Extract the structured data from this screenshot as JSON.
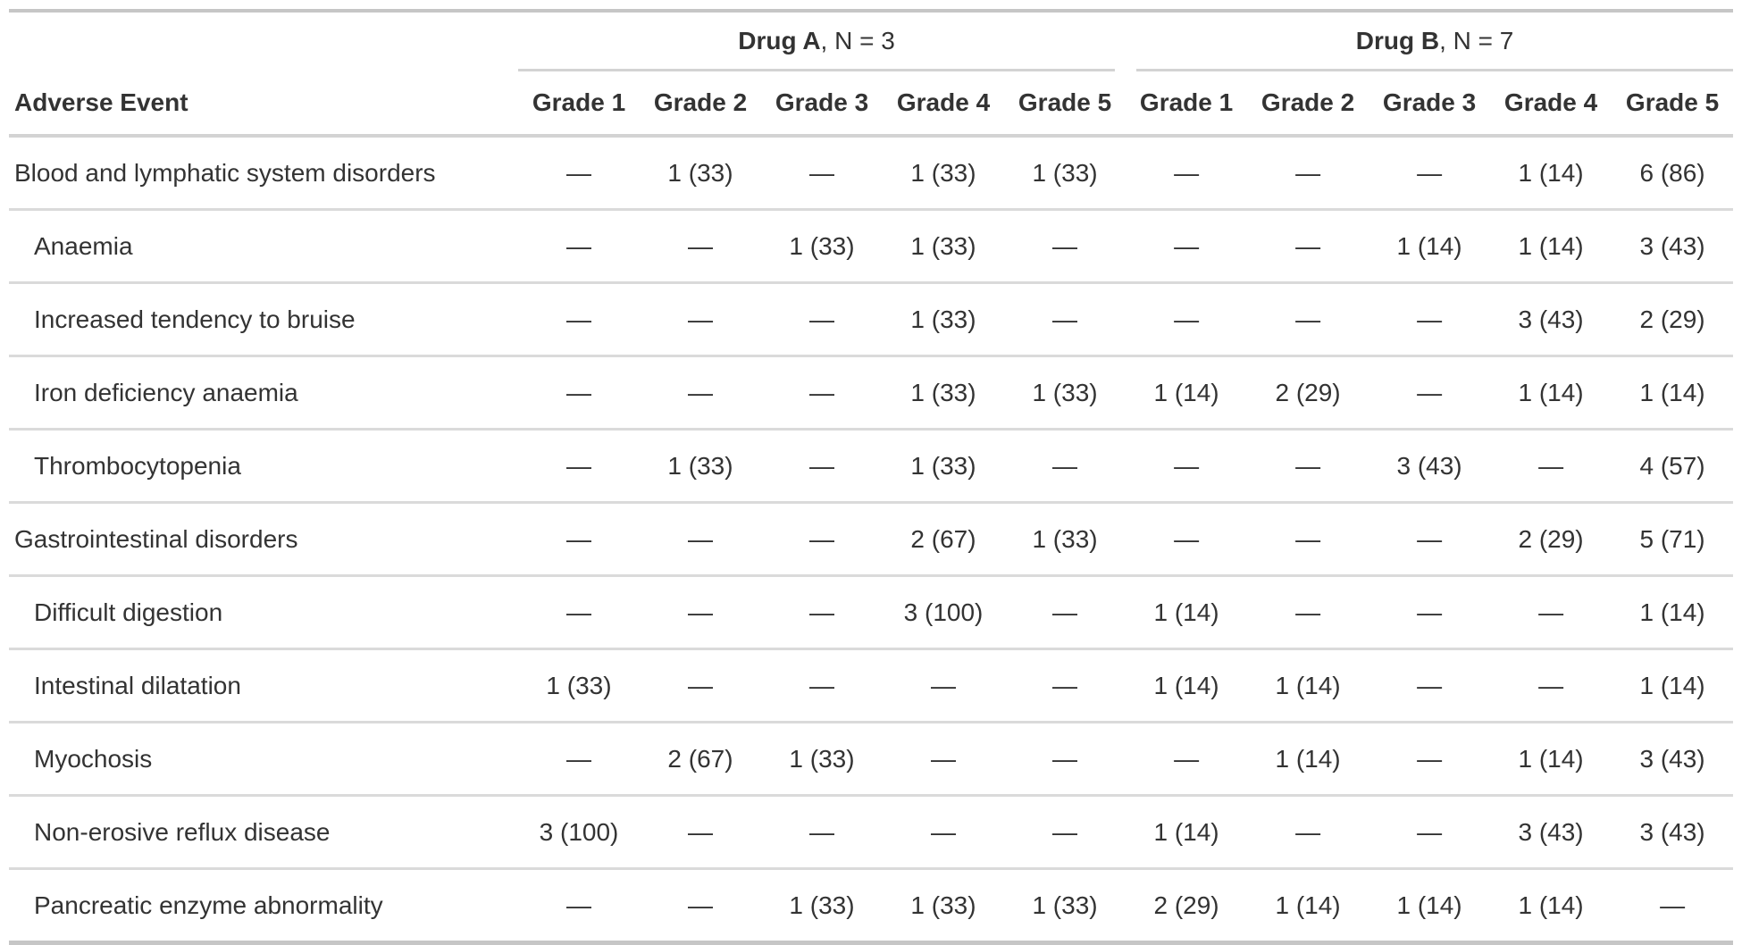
{
  "colors": {
    "text": "#333333",
    "rule_light": "#d3d3d3",
    "rule_dark": "#c6c6c6",
    "background": "#ffffff"
  },
  "chart_data": {
    "type": "table",
    "row_header": "Adverse Event",
    "empty_symbol": "—",
    "groups": [
      {
        "name": "Drug A",
        "suffix": ", N = 3",
        "grades": [
          "Grade 1",
          "Grade 2",
          "Grade 3",
          "Grade 4",
          "Grade 5"
        ]
      },
      {
        "name": "Drug B",
        "suffix": ", N = 7",
        "grades": [
          "Grade 1",
          "Grade 2",
          "Grade 3",
          "Grade 4",
          "Grade 5"
        ]
      }
    ],
    "rows": [
      {
        "label": "Blood and lymphatic system disorders",
        "indent": false,
        "values": [
          "—",
          "1 (33)",
          "—",
          "1 (33)",
          "1 (33)",
          "—",
          "—",
          "—",
          "1 (14)",
          "6 (86)"
        ]
      },
      {
        "label": "Anaemia",
        "indent": true,
        "values": [
          "—",
          "—",
          "1 (33)",
          "1 (33)",
          "—",
          "—",
          "—",
          "1 (14)",
          "1 (14)",
          "3 (43)"
        ]
      },
      {
        "label": "Increased tendency to bruise",
        "indent": true,
        "values": [
          "—",
          "—",
          "—",
          "1 (33)",
          "—",
          "—",
          "—",
          "—",
          "3 (43)",
          "2 (29)"
        ]
      },
      {
        "label": "Iron deficiency anaemia",
        "indent": true,
        "values": [
          "—",
          "—",
          "—",
          "1 (33)",
          "1 (33)",
          "1 (14)",
          "2 (29)",
          "—",
          "1 (14)",
          "1 (14)"
        ]
      },
      {
        "label": "Thrombocytopenia",
        "indent": true,
        "values": [
          "—",
          "1 (33)",
          "—",
          "1 (33)",
          "—",
          "—",
          "—",
          "3 (43)",
          "—",
          "4 (57)"
        ]
      },
      {
        "label": "Gastrointestinal disorders",
        "indent": false,
        "values": [
          "—",
          "—",
          "—",
          "2 (67)",
          "1 (33)",
          "—",
          "—",
          "—",
          "2 (29)",
          "5 (71)"
        ]
      },
      {
        "label": "Difficult digestion",
        "indent": true,
        "values": [
          "—",
          "—",
          "—",
          "3 (100)",
          "—",
          "1 (14)",
          "—",
          "—",
          "—",
          "1 (14)"
        ]
      },
      {
        "label": "Intestinal dilatation",
        "indent": true,
        "values": [
          "1 (33)",
          "—",
          "—",
          "—",
          "—",
          "1 (14)",
          "1 (14)",
          "—",
          "—",
          "1 (14)"
        ]
      },
      {
        "label": "Myochosis",
        "indent": true,
        "values": [
          "—",
          "2 (67)",
          "1 (33)",
          "—",
          "—",
          "—",
          "1 (14)",
          "—",
          "1 (14)",
          "3 (43)"
        ]
      },
      {
        "label": "Non-erosive reflux disease",
        "indent": true,
        "values": [
          "3 (100)",
          "—",
          "—",
          "—",
          "—",
          "1 (14)",
          "—",
          "—",
          "3 (43)",
          "3 (43)"
        ]
      },
      {
        "label": "Pancreatic enzyme abnormality",
        "indent": true,
        "values": [
          "—",
          "—",
          "1 (33)",
          "1 (33)",
          "1 (33)",
          "2 (29)",
          "1 (14)",
          "1 (14)",
          "1 (14)",
          "—"
        ]
      }
    ]
  }
}
